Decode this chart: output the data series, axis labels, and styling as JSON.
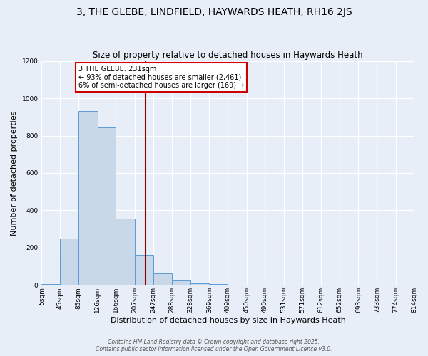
{
  "title": "3, THE GLEBE, LINDFIELD, HAYWARDS HEATH, RH16 2JS",
  "subtitle": "Size of property relative to detached houses in Haywards Heath",
  "xlabel": "Distribution of detached houses by size in Haywards Heath",
  "ylabel": "Number of detached properties",
  "bar_edges": [
    5,
    45,
    85,
    126,
    166,
    207,
    247,
    288,
    328,
    369,
    409,
    450,
    490,
    531,
    571,
    612,
    652,
    693,
    733,
    774,
    814
  ],
  "bar_heights": [
    5,
    248,
    930,
    845,
    355,
    160,
    62,
    28,
    10,
    5,
    3,
    0,
    0,
    2,
    0,
    0,
    0,
    0,
    0,
    0
  ],
  "bar_color": "#c8d8e8",
  "bar_edge_color": "#5b9bd5",
  "vline_x": 231,
  "vline_color": "#8b0000",
  "annotation_text": "3 THE GLEBE: 231sqm\n← 93% of detached houses are smaller (2,461)\n6% of semi-detached houses are larger (169) →",
  "annotation_box_color": "#ffffff",
  "annotation_box_edge_color": "#cc0000",
  "ylim": [
    0,
    1200
  ],
  "yticks": [
    0,
    200,
    400,
    600,
    800,
    1000,
    1200
  ],
  "xtick_labels": [
    "5sqm",
    "45sqm",
    "85sqm",
    "126sqm",
    "166sqm",
    "207sqm",
    "247sqm",
    "288sqm",
    "328sqm",
    "369sqm",
    "409sqm",
    "450sqm",
    "490sqm",
    "531sqm",
    "571sqm",
    "612sqm",
    "652sqm",
    "693sqm",
    "733sqm",
    "774sqm",
    "814sqm"
  ],
  "background_color": "#e8eef8",
  "grid_color": "#ffffff",
  "footer_line1": "Contains HM Land Registry data © Crown copyright and database right 2025.",
  "footer_line2": "Contains public sector information licensed under the Open Government Licence v3.0.",
  "title_fontsize": 10,
  "subtitle_fontsize": 8.5,
  "xlabel_fontsize": 8,
  "ylabel_fontsize": 8,
  "tick_fontsize": 6.5,
  "footer_fontsize": 5.5,
  "annotation_fontsize": 7
}
